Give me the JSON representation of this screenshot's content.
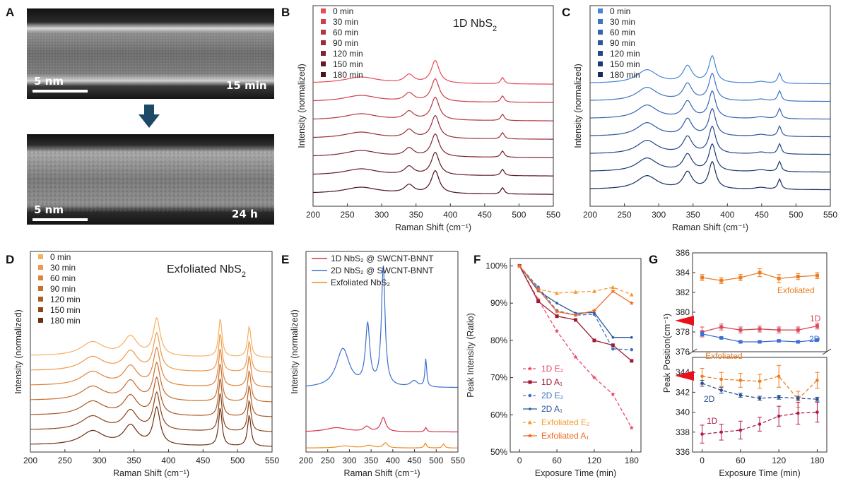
{
  "panels": {
    "A": "A",
    "B": "B",
    "C": "C",
    "D": "D",
    "E": "E",
    "F": "F",
    "G": "G"
  },
  "tem": {
    "top": {
      "scale_label": "5 nm",
      "time_label": "15 min"
    },
    "bottom": {
      "scale_label": "5 nm",
      "time_label": "24 h"
    }
  },
  "colors": {
    "red_series": [
      "#e84b55",
      "#cc404a",
      "#b23743",
      "#992e3a",
      "#7e2530",
      "#621b25",
      "#4a121a"
    ],
    "blue_series": [
      "#4a84d6",
      "#3f74c4",
      "#3565b1",
      "#2c579e",
      "#234789",
      "#1b3a74",
      "#142d5e"
    ],
    "orange_series": [
      "#f6b062",
      "#ee9a48",
      "#e0843a",
      "#c96f2e",
      "#ad5a24",
      "#8e451a",
      "#6c3010"
    ],
    "oneD": "#d7344b",
    "twoD": "#3c6fd0",
    "exf": "#f08a24",
    "oneD_E2": "#e84b6a",
    "oneD_A1": "#a11834",
    "twoD_E2": "#3f74c4",
    "twoD_A1": "#2c579e",
    "exf_E2": "#f59a30",
    "exf_A1": "#f06a24",
    "g_exf_top": "#ec7d22",
    "g_1d_top": "#d84a5a",
    "g_2d_top": "#3c6fd0",
    "g_exf_bot": "#ec7d22",
    "g_2d_bot": "#2c4f8e",
    "g_1d_bot": "#b01e48",
    "arrow": "#e8111b",
    "down_arrow": "#1c4a66"
  },
  "chart_data": [
    {
      "id": "B",
      "type": "line",
      "title": "1D NbS₂",
      "xlabel": "Raman Shift (cm⁻¹)",
      "ylabel": "Intensity (normalized)",
      "xlim": [
        200,
        550
      ],
      "xticks": [
        200,
        250,
        300,
        350,
        400,
        450,
        500,
        550
      ],
      "legend_position": "top-left",
      "peaks": [
        {
          "x": 270,
          "h": 0.28,
          "w": 30
        },
        {
          "x": 340,
          "h": 0.36,
          "w": 8
        },
        {
          "x": 378,
          "h": 1.0,
          "w": 7
        },
        {
          "x": 476,
          "h": 0.28,
          "w": 3
        }
      ],
      "series": [
        {
          "name": "0 min"
        },
        {
          "name": "30 min"
        },
        {
          "name": "60 min"
        },
        {
          "name": "90 min"
        },
        {
          "name": "120 min"
        },
        {
          "name": "150 min"
        },
        {
          "name": "180 min"
        }
      ]
    },
    {
      "id": "C",
      "type": "line",
      "xlabel": "Raman Shift (cm⁻¹)",
      "ylabel": "Intensity (normalized)",
      "xlim": [
        200,
        550
      ],
      "xticks": [
        200,
        250,
        300,
        350,
        400,
        450,
        500,
        550
      ],
      "legend_position": "top-left",
      "peaks": [
        {
          "x": 283,
          "h": 0.5,
          "w": 18
        },
        {
          "x": 342,
          "h": 0.62,
          "w": 8
        },
        {
          "x": 378,
          "h": 1.0,
          "w": 6
        },
        {
          "x": 449,
          "h": 0.07,
          "w": 10
        },
        {
          "x": 476,
          "h": 0.38,
          "w": 3
        }
      ],
      "series": [
        {
          "name": "0 min"
        },
        {
          "name": "30 min"
        },
        {
          "name": "60 min"
        },
        {
          "name": "90 min"
        },
        {
          "name": "120 min"
        },
        {
          "name": "150 min"
        },
        {
          "name": "180 min"
        }
      ]
    },
    {
      "id": "D",
      "type": "line",
      "title": "Exfoliated NbS₂",
      "xlabel": "Raman Shift (cm⁻¹)",
      "ylabel": "Intensity (normalized)",
      "xlim": [
        200,
        550
      ],
      "xticks": [
        200,
        250,
        300,
        350,
        400,
        450,
        500,
        550
      ],
      "legend_position": "top-left",
      "peaks": [
        {
          "x": 290,
          "h": 0.38,
          "w": 20
        },
        {
          "x": 345,
          "h": 0.52,
          "w": 12
        },
        {
          "x": 383,
          "h": 1.0,
          "w": 6
        },
        {
          "x": 475,
          "h": 1.05,
          "w": 3
        },
        {
          "x": 517,
          "h": 0.85,
          "w": 3
        }
      ],
      "series": [
        {
          "name": "0 min"
        },
        {
          "name": "30 min"
        },
        {
          "name": "60 min"
        },
        {
          "name": "90 min"
        },
        {
          "name": "120 min"
        },
        {
          "name": "150 min"
        },
        {
          "name": "180 min"
        }
      ]
    },
    {
      "id": "E",
      "type": "line",
      "xlabel": "Raman Shift (cm⁻¹)",
      "ylabel": "Intensity (normalized)",
      "xlim": [
        200,
        550
      ],
      "xticks": [
        200,
        250,
        300,
        350,
        400,
        450,
        500,
        550
      ],
      "legend_position": "top-right",
      "series": [
        {
          "name": "1D NbS₂ @ SWCNT-BNNT",
          "offset": 0.1,
          "scale": 0.07,
          "peaks": [
            {
              "x": 270,
              "h": 0.3,
              "w": 30
            },
            {
              "x": 340,
              "h": 0.35,
              "w": 8
            },
            {
              "x": 378,
              "h": 1.0,
              "w": 7
            },
            {
              "x": 476,
              "h": 0.3,
              "w": 3
            }
          ]
        },
        {
          "name": "2D NbS₂ @ SWCNT-BNNT",
          "offset": 0.32,
          "scale": 0.6,
          "peaks": [
            {
              "x": 285,
              "h": 0.32,
              "w": 18
            },
            {
              "x": 342,
              "h": 0.5,
              "w": 6
            },
            {
              "x": 378,
              "h": 1.0,
              "w": 5
            },
            {
              "x": 449,
              "h": 0.05,
              "w": 10
            },
            {
              "x": 476,
              "h": 0.23,
              "w": 2.5
            }
          ]
        },
        {
          "name": "Exfoliated NbS₂",
          "offset": 0.02,
          "scale": 0.025,
          "peaks": [
            {
              "x": 290,
              "h": 0.4,
              "w": 20
            },
            {
              "x": 345,
              "h": 0.5,
              "w": 12
            },
            {
              "x": 383,
              "h": 1.0,
              "w": 6
            },
            {
              "x": 475,
              "h": 1.0,
              "w": 3
            },
            {
              "x": 517,
              "h": 0.85,
              "w": 3
            }
          ]
        }
      ]
    },
    {
      "id": "F",
      "type": "line",
      "xlabel": "Exposure Time (min)",
      "ylabel": "Peak Intensity (Ratio)",
      "xlim": [
        -15,
        195
      ],
      "ylim": [
        50,
        102
      ],
      "xticks": [
        0,
        60,
        120,
        180
      ],
      "yticks": [
        50,
        60,
        70,
        80,
        90,
        100
      ],
      "ytick_labels": [
        "50%",
        "60%",
        "70%",
        "80%",
        "90%",
        "100%"
      ],
      "legend_position": "bottom-left",
      "x": [
        0,
        30,
        60,
        90,
        120,
        150,
        180
      ],
      "series": [
        {
          "name": "1D E₂",
          "dash": true,
          "marker": "star",
          "values": [
            100,
            91,
            82.5,
            75.5,
            70,
            65.5,
            56.5
          ]
        },
        {
          "name": "1D A₁",
          "dash": false,
          "marker": "square",
          "values": [
            100,
            90.5,
            86.5,
            85.5,
            80,
            78.7,
            74.5
          ]
        },
        {
          "name": "2D E₂",
          "dash": true,
          "marker": "circle",
          "values": [
            100,
            94.3,
            88,
            86.8,
            87,
            77.7,
            77.5
          ]
        },
        {
          "name": "2D A₁",
          "dash": false,
          "marker": "dot",
          "values": [
            100,
            93.3,
            90,
            87.3,
            87.5,
            80.8,
            80.8
          ]
        },
        {
          "name": "Exfoliated E₂",
          "dash": true,
          "marker": "triangle",
          "values": [
            100,
            93.8,
            92.7,
            93,
            93.2,
            94.3,
            92.3
          ]
        },
        {
          "name": "Exfoliated A₁",
          "dash": false,
          "marker": "star",
          "values": [
            100,
            93.7,
            87.7,
            86.8,
            88,
            93.2,
            90
          ]
        }
      ]
    },
    {
      "id": "G",
      "type": "line",
      "xlabel": "Exposure Time (min)",
      "ylabel": "Peak Position(cm⁻¹)",
      "xlim": [
        -15,
        195
      ],
      "xticks": [
        0,
        60,
        120,
        180
      ],
      "upper": {
        "ylim": [
          376,
          386
        ],
        "yticks": [
          376,
          378,
          380,
          382,
          384,
          386
        ]
      },
      "lower": {
        "ylim": [
          336,
          345.5
        ],
        "yticks": [
          336,
          338,
          340,
          342,
          344
        ]
      },
      "x": [
        0,
        30,
        60,
        90,
        120,
        150,
        180
      ],
      "series": [
        {
          "name": "Exfoliated",
          "axis": "upper",
          "dash": false,
          "values": [
            383.5,
            383.2,
            383.5,
            384,
            383.4,
            383.6,
            383.7
          ],
          "err": [
            0.3,
            0.3,
            0.3,
            0.4,
            0.4,
            0.3,
            0.3
          ]
        },
        {
          "name": "1D",
          "axis": "upper",
          "dash": false,
          "values": [
            378,
            378.5,
            378.2,
            378.3,
            378.2,
            378.2,
            378.6
          ],
          "err": [
            0.5,
            0.3,
            0.3,
            0.3,
            0.3,
            0.3,
            0.3
          ]
        },
        {
          "name": "2D",
          "axis": "upper",
          "dash": false,
          "values": [
            377.8,
            377.4,
            377,
            377,
            377.1,
            377,
            377.2
          ],
          "err": [
            0.2,
            0.1,
            0.1,
            0.1,
            0.1,
            0.1,
            0.1
          ]
        },
        {
          "name": "Exfoliated",
          "axis": "lower",
          "dash": true,
          "values": [
            343.6,
            343.3,
            343.2,
            343.1,
            343.6,
            341.3,
            343.2
          ],
          "err": [
            0.8,
            0.7,
            0.7,
            0.7,
            1.1,
            0.8,
            0.8
          ]
        },
        {
          "name": "2D",
          "axis": "lower",
          "dash": true,
          "values": [
            342.9,
            342.2,
            341.7,
            341.4,
            341.5,
            341.4,
            341.3
          ],
          "err": [
            0.3,
            0.3,
            0.2,
            0.2,
            0.2,
            0.2,
            0.2
          ]
        },
        {
          "name": "1D",
          "axis": "lower",
          "dash": true,
          "values": [
            337.8,
            338,
            338.2,
            338.8,
            339.6,
            339.9,
            340
          ],
          "err": [
            0.9,
            0.8,
            0.9,
            0.7,
            1.0,
            1.1,
            1.0
          ]
        }
      ],
      "labels": {
        "exf_top": "Exfoliated",
        "one_d_top": "1D",
        "two_d_top": "2D",
        "exf_bot": "Exfoliated",
        "two_d_bot": "2D",
        "one_d_bot": "1D"
      }
    }
  ]
}
